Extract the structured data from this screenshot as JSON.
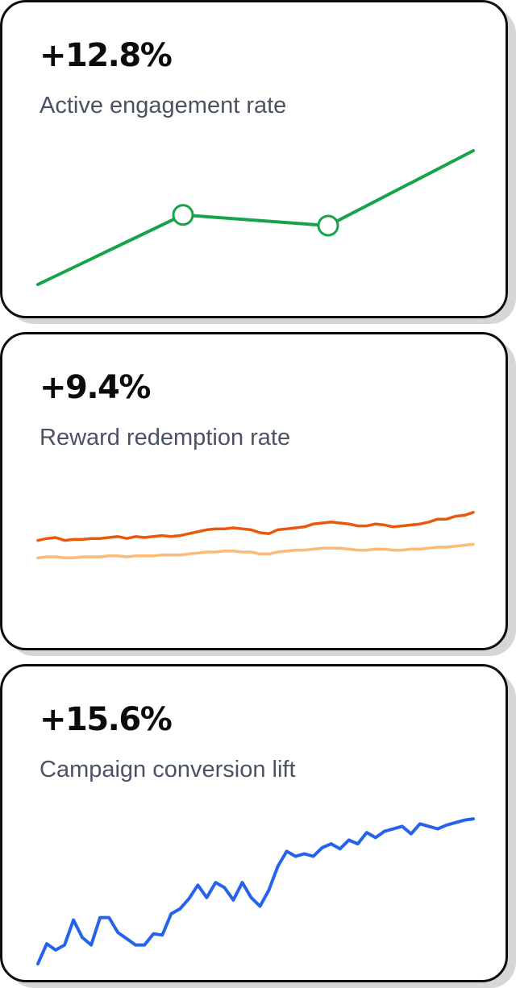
{
  "cards": [
    {
      "value": "+12.8%",
      "label": "Active engagement rate",
      "chart_data": {
        "type": "line",
        "x": [
          0,
          1,
          2,
          3
        ],
        "series": [
          {
            "values": [
              0,
              52,
              44,
              100
            ],
            "color": "#16a34a",
            "markers": [
              false,
              true,
              true,
              false
            ]
          }
        ],
        "ylim": [
          0,
          100
        ],
        "grid": false
      }
    },
    {
      "value": "+9.4%",
      "label": "Reward redemption rate",
      "chart_data": {
        "type": "line",
        "x": [
          0,
          1,
          2,
          3,
          4,
          5,
          6,
          7,
          8,
          9,
          10,
          11,
          12,
          13,
          14,
          15,
          16,
          17,
          18,
          19,
          20,
          21,
          22,
          23,
          24,
          25,
          26,
          27,
          28,
          29,
          30,
          31,
          32,
          33,
          34,
          35,
          36,
          37,
          38,
          39,
          40,
          41,
          42,
          43,
          44,
          45,
          46,
          47,
          48,
          49
        ],
        "series": [
          {
            "values": [
              37,
              39,
              40,
              37,
              38,
              38,
              39,
              39,
              40,
              41,
              39,
              41,
              40,
              41,
              42,
              41,
              42,
              44,
              46,
              48,
              49,
              49,
              50,
              49,
              48,
              45,
              44,
              48,
              49,
              50,
              51,
              54,
              55,
              56,
              55,
              54,
              52,
              52,
              54,
              53,
              51,
              52,
              53,
              54,
              56,
              59,
              59,
              62,
              63,
              66
            ],
            "color": "#ea580c"
          },
          {
            "values": [
              19,
              20,
              20,
              19,
              19,
              20,
              20,
              20,
              21,
              21,
              20,
              21,
              21,
              21,
              22,
              22,
              22,
              23,
              24,
              25,
              25,
              26,
              26,
              25,
              25,
              23,
              23,
              25,
              26,
              27,
              27,
              28,
              29,
              29,
              29,
              28,
              27,
              27,
              28,
              28,
              27,
              27,
              28,
              28,
              29,
              30,
              30,
              31,
              32,
              33
            ],
            "color": "#fdba74"
          }
        ],
        "ylim": [
          0,
          100
        ],
        "grid": false
      }
    },
    {
      "value": "+15.6%",
      "label": "Campaign conversion lift",
      "chart_data": {
        "type": "line",
        "x": [
          0,
          1,
          2,
          3,
          4,
          5,
          6,
          7,
          8,
          9,
          10,
          11,
          12,
          13,
          14,
          15,
          16,
          17,
          18,
          19,
          20,
          21,
          22,
          23,
          24,
          25,
          26,
          27,
          28,
          29,
          30,
          31,
          32,
          33,
          34,
          35,
          36,
          37,
          38,
          39,
          40,
          41,
          42,
          43,
          44,
          45,
          46,
          47,
          48,
          49
        ],
        "series": [
          {
            "values": [
              2,
              18,
              13,
              17,
              37,
              23,
              17,
              39,
              39,
              27,
              22,
              17,
              17,
              26,
              25,
              42,
              46,
              54,
              65,
              55,
              67,
              63,
              53,
              67,
              55,
              48,
              61,
              80,
              92,
              88,
              90,
              88,
              95,
              98,
              94,
              101,
              98,
              107,
              103,
              108,
              110,
              112,
              106,
              114,
              112,
              110,
              113,
              115,
              117,
              118
            ],
            "color": "#2563eb"
          }
        ],
        "ylim": [
          0,
          120
        ],
        "grid": false
      }
    }
  ]
}
